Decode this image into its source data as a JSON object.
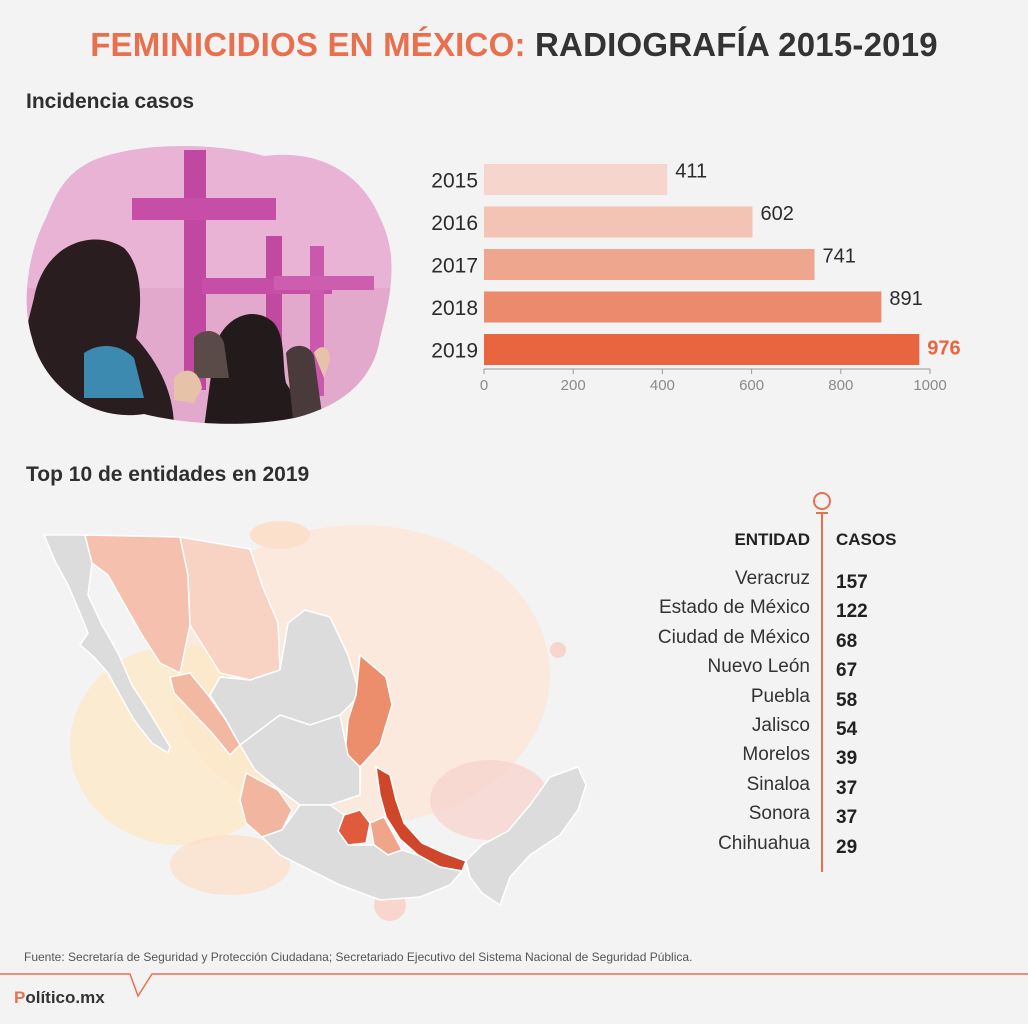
{
  "title": {
    "part1": "FEMINICIDIOS EN MÉXICO:",
    "part2": "RADIOGRAFÍA 2015-2019"
  },
  "section1": {
    "label": "Incidencia casos"
  },
  "section2": {
    "label": "Top 10 de entidades en 2019"
  },
  "chart_data": {
    "type": "bar",
    "orientation": "horizontal",
    "title": "Incidencia casos",
    "categories": [
      "2015",
      "2016",
      "2017",
      "2018",
      "2019"
    ],
    "values": [
      411,
      602,
      741,
      891,
      976
    ],
    "value_labels": [
      "411",
      "602",
      "741",
      "891",
      "976"
    ],
    "xlim": [
      0,
      1000
    ],
    "xticks": [
      "0",
      "200",
      "400",
      "600",
      "800",
      "1000"
    ],
    "xlabel": "",
    "ylabel": "",
    "grid": false,
    "colors": [
      "#f6d6cc",
      "#f3c4b4",
      "#efa68e",
      "#eb8a6d",
      "#e8653f"
    ],
    "highlight_color": "#e8653f"
  },
  "table": {
    "header_entity": "ENTIDAD",
    "header_cases": "CASOS",
    "rows": [
      {
        "entity": "Veracruz",
        "cases": "157"
      },
      {
        "entity": "Estado de México",
        "cases": "122"
      },
      {
        "entity": "Ciudad de México",
        "cases": "68"
      },
      {
        "entity": "Nuevo León",
        "cases": "67"
      },
      {
        "entity": "Puebla",
        "cases": "58"
      },
      {
        "entity": "Jalisco",
        "cases": "54"
      },
      {
        "entity": "Morelos",
        "cases": "39"
      },
      {
        "entity": "Sinaloa",
        "cases": "37"
      },
      {
        "entity": "Sonora",
        "cases": "37"
      },
      {
        "entity": "Chihuahua",
        "cases": "29"
      }
    ]
  },
  "source": "Fuente: Secretaría de Seguridad y Protección Ciudadana; Secretariado Ejecutivo del Sistema Nacional de Seguridad Pública.",
  "logo": {
    "prefix": "P",
    "rest": "olítico.mx"
  },
  "colors": {
    "accent": "#e8704f",
    "map_gray": "#dcdcdc"
  }
}
